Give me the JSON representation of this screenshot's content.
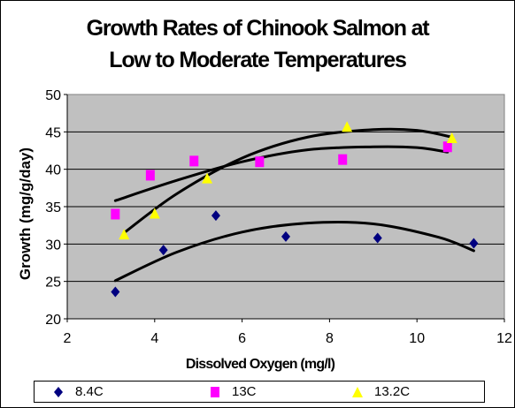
{
  "chart_data": {
    "type": "scatter",
    "title_lines": [
      "Growth Rates of Chinook Salmon at",
      "Low to Moderate Temperatures"
    ],
    "xlabel": "Dissolved Oxygen (mg/l)",
    "ylabel": "Growth  (mg/g/day)",
    "xlim": [
      2,
      12
    ],
    "ylim": [
      20,
      50
    ],
    "x_ticks": [
      2,
      4,
      6,
      8,
      10,
      12
    ],
    "y_ticks": [
      20,
      25,
      30,
      35,
      40,
      45,
      50
    ],
    "grid": "horizontal",
    "plot_background": "#c0c0c0",
    "legend_position": "bottom",
    "series": [
      {
        "name": "8.4C",
        "marker": "diamond",
        "color": "#000080",
        "points": [
          [
            3.1,
            23.6
          ],
          [
            4.2,
            29.2
          ],
          [
            5.4,
            33.8
          ],
          [
            7.0,
            31.0
          ],
          [
            9.1,
            30.8
          ],
          [
            11.3,
            30.1
          ]
        ],
        "trendline": [
          [
            3.1,
            25.1
          ],
          [
            4.5,
            28.9
          ],
          [
            6.0,
            31.6
          ],
          [
            7.5,
            32.8
          ],
          [
            9.0,
            32.7
          ],
          [
            10.5,
            30.9
          ],
          [
            11.3,
            29.1
          ]
        ]
      },
      {
        "name": "13C",
        "marker": "square",
        "color": "#ff00ff",
        "points": [
          [
            3.1,
            34.0
          ],
          [
            3.9,
            39.2
          ],
          [
            4.9,
            41.1
          ],
          [
            6.4,
            41.0
          ],
          [
            8.3,
            41.3
          ],
          [
            10.7,
            43.0
          ]
        ],
        "trendline": [
          [
            3.1,
            35.8
          ],
          [
            4.5,
            38.5
          ],
          [
            6.0,
            41.0
          ],
          [
            7.5,
            42.6
          ],
          [
            9.0,
            43.0
          ],
          [
            10.0,
            42.9
          ],
          [
            10.7,
            42.3
          ]
        ]
      },
      {
        "name": "13.2C",
        "marker": "triangle",
        "color": "#ffff00",
        "points": [
          [
            3.3,
            31.2
          ],
          [
            4.0,
            34.0
          ],
          [
            5.2,
            38.7
          ],
          [
            8.4,
            45.6
          ],
          [
            10.8,
            44.1
          ]
        ],
        "trendline": [
          [
            3.3,
            31.5
          ],
          [
            4.5,
            36.7
          ],
          [
            6.0,
            41.5
          ],
          [
            7.5,
            44.3
          ],
          [
            9.0,
            45.3
          ],
          [
            10.0,
            45.2
          ],
          [
            10.8,
            44.3
          ]
        ]
      }
    ]
  }
}
